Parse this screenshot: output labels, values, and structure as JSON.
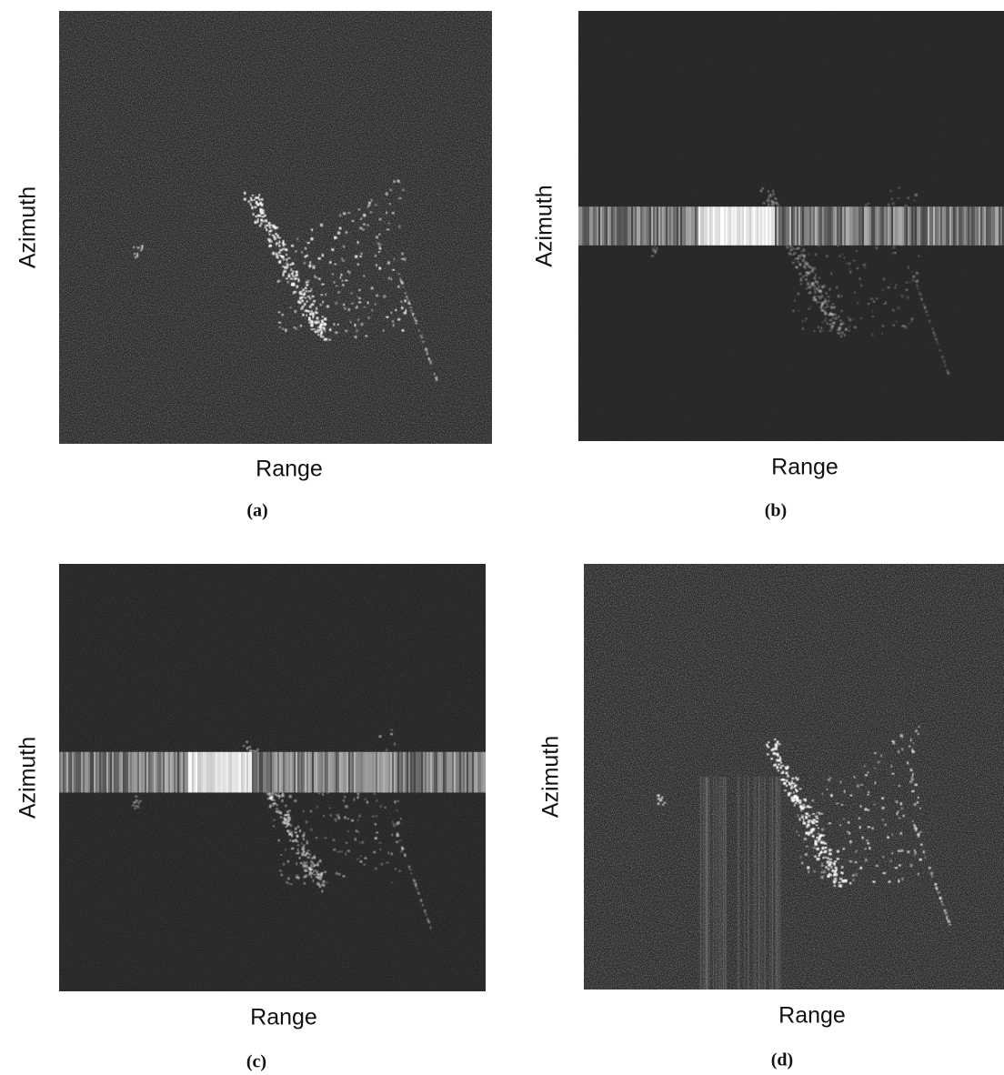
{
  "panels": [
    {
      "y_label": "Azimuth",
      "x_label": "Range",
      "caption": "(a)"
    },
    {
      "y_label": "Azimuth",
      "x_label": "Range",
      "caption": "(b)"
    },
    {
      "y_label": "Azimuth",
      "x_label": "Range",
      "caption": "(c)"
    },
    {
      "y_label": "Azimuth",
      "x_label": "Range",
      "caption": "(d)"
    }
  ]
}
